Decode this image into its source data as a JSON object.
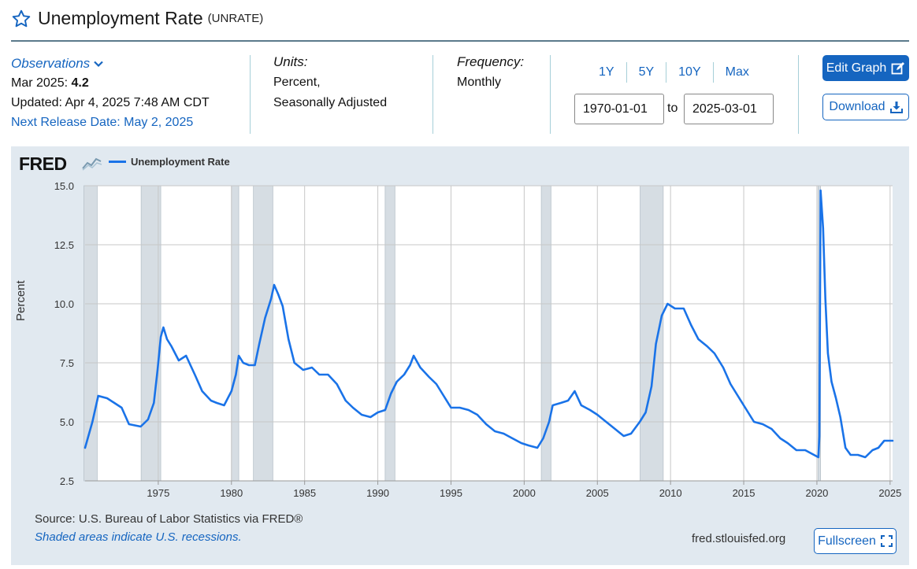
{
  "header": {
    "title": "Unemployment Rate",
    "series_id": "(UNRATE)"
  },
  "observations": {
    "link_label": "Observations",
    "period_label": "Mar 2025:",
    "value": "4.2",
    "updated": "Updated: Apr 4, 2025 7:48 AM CDT",
    "next_release": "Next Release Date: May 2, 2025"
  },
  "units": {
    "label": "Units:",
    "line1": "Percent,",
    "line2": "Seasonally Adjusted"
  },
  "frequency": {
    "label": "Frequency:",
    "value": "Monthly"
  },
  "range_buttons": [
    "1Y",
    "5Y",
    "10Y",
    "Max"
  ],
  "date_range": {
    "start": "1970-01-01",
    "to_label": "to",
    "end": "2025-03-01"
  },
  "buttons": {
    "edit": "Edit Graph",
    "download": "Download",
    "fullscreen": "Fullscreen"
  },
  "footer": {
    "source": "Source: U.S. Bureau of Labor Statistics via FRED®",
    "note": "Shaded areas indicate U.S. recessions.",
    "site": "fred.stlouisfed.org"
  },
  "logo_text": "FRED",
  "colors": {
    "accent": "#1565c0",
    "line": "#1a73e8",
    "panel": "#e1e9f0",
    "recession": "#d6dde3"
  },
  "chart_data": {
    "type": "line",
    "legend": "Unemployment Rate",
    "ylabel": "Percent",
    "xlim": [
      1970.0,
      2025.17
    ],
    "ylim": [
      2.5,
      15.0
    ],
    "yticks": [
      "2.5",
      "5.0",
      "7.5",
      "10.0",
      "12.5",
      "15.0"
    ],
    "ytick_values": [
      2.5,
      5.0,
      7.5,
      10.0,
      12.5,
      15.0
    ],
    "xticks": [
      "1975",
      "1980",
      "1985",
      "1990",
      "1995",
      "2000",
      "2005",
      "2010",
      "2015",
      "2020",
      "2025"
    ],
    "xtick_values": [
      1975,
      1980,
      1985,
      1990,
      1995,
      2000,
      2005,
      2010,
      2015,
      2020,
      2025
    ],
    "recessions": [
      [
        1969.92,
        1970.83
      ],
      [
        1973.83,
        1975.17
      ],
      [
        1980.0,
        1980.5
      ],
      [
        1981.5,
        1982.83
      ],
      [
        1990.5,
        1991.17
      ],
      [
        2001.17,
        2001.83
      ],
      [
        2007.92,
        2009.5
      ],
      [
        2020.08,
        2020.25
      ]
    ],
    "series": [
      {
        "name": "Unemployment Rate",
        "points": [
          [
            1970.0,
            3.9
          ],
          [
            1970.5,
            5.0
          ],
          [
            1970.9,
            6.1
          ],
          [
            1971.5,
            6.0
          ],
          [
            1972.0,
            5.8
          ],
          [
            1972.5,
            5.6
          ],
          [
            1973.0,
            4.9
          ],
          [
            1973.8,
            4.8
          ],
          [
            1974.3,
            5.1
          ],
          [
            1974.7,
            5.8
          ],
          [
            1974.95,
            7.2
          ],
          [
            1975.17,
            8.6
          ],
          [
            1975.35,
            9.0
          ],
          [
            1975.6,
            8.5
          ],
          [
            1975.9,
            8.2
          ],
          [
            1976.4,
            7.6
          ],
          [
            1976.9,
            7.8
          ],
          [
            1977.5,
            7.0
          ],
          [
            1978.0,
            6.3
          ],
          [
            1978.6,
            5.9
          ],
          [
            1979.0,
            5.8
          ],
          [
            1979.5,
            5.7
          ],
          [
            1980.0,
            6.3
          ],
          [
            1980.3,
            7.0
          ],
          [
            1980.5,
            7.8
          ],
          [
            1980.8,
            7.5
          ],
          [
            1981.2,
            7.4
          ],
          [
            1981.6,
            7.4
          ],
          [
            1981.9,
            8.3
          ],
          [
            1982.3,
            9.4
          ],
          [
            1982.7,
            10.2
          ],
          [
            1982.92,
            10.8
          ],
          [
            1983.2,
            10.4
          ],
          [
            1983.5,
            9.9
          ],
          [
            1983.9,
            8.5
          ],
          [
            1984.3,
            7.5
          ],
          [
            1984.9,
            7.2
          ],
          [
            1985.5,
            7.3
          ],
          [
            1986.0,
            7.0
          ],
          [
            1986.6,
            7.0
          ],
          [
            1987.2,
            6.6
          ],
          [
            1987.8,
            5.9
          ],
          [
            1988.3,
            5.6
          ],
          [
            1988.9,
            5.3
          ],
          [
            1989.5,
            5.2
          ],
          [
            1990.0,
            5.4
          ],
          [
            1990.5,
            5.5
          ],
          [
            1990.9,
            6.2
          ],
          [
            1991.3,
            6.7
          ],
          [
            1991.8,
            7.0
          ],
          [
            1992.2,
            7.4
          ],
          [
            1992.45,
            7.8
          ],
          [
            1992.9,
            7.3
          ],
          [
            1993.5,
            6.9
          ],
          [
            1994.0,
            6.6
          ],
          [
            1994.5,
            6.1
          ],
          [
            1995.0,
            5.6
          ],
          [
            1995.6,
            5.6
          ],
          [
            1996.2,
            5.5
          ],
          [
            1996.8,
            5.3
          ],
          [
            1997.4,
            4.9
          ],
          [
            1998.0,
            4.6
          ],
          [
            1998.6,
            4.5
          ],
          [
            1999.2,
            4.3
          ],
          [
            1999.8,
            4.1
          ],
          [
            2000.3,
            4.0
          ],
          [
            2000.9,
            3.9
          ],
          [
            2001.3,
            4.3
          ],
          [
            2001.7,
            5.0
          ],
          [
            2001.95,
            5.7
          ],
          [
            2002.5,
            5.8
          ],
          [
            2003.0,
            5.9
          ],
          [
            2003.45,
            6.3
          ],
          [
            2003.9,
            5.7
          ],
          [
            2004.5,
            5.5
          ],
          [
            2005.0,
            5.3
          ],
          [
            2005.6,
            5.0
          ],
          [
            2006.2,
            4.7
          ],
          [
            2006.8,
            4.4
          ],
          [
            2007.3,
            4.5
          ],
          [
            2007.9,
            5.0
          ],
          [
            2008.3,
            5.4
          ],
          [
            2008.7,
            6.5
          ],
          [
            2009.0,
            8.3
          ],
          [
            2009.4,
            9.5
          ],
          [
            2009.8,
            10.0
          ],
          [
            2010.3,
            9.8
          ],
          [
            2010.9,
            9.8
          ],
          [
            2011.4,
            9.1
          ],
          [
            2011.9,
            8.5
          ],
          [
            2012.5,
            8.2
          ],
          [
            2013.0,
            7.9
          ],
          [
            2013.6,
            7.3
          ],
          [
            2014.1,
            6.6
          ],
          [
            2014.6,
            6.1
          ],
          [
            2015.1,
            5.6
          ],
          [
            2015.7,
            5.0
          ],
          [
            2016.3,
            4.9
          ],
          [
            2016.9,
            4.7
          ],
          [
            2017.5,
            4.3
          ],
          [
            2018.0,
            4.1
          ],
          [
            2018.6,
            3.8
          ],
          [
            2019.2,
            3.8
          ],
          [
            2019.8,
            3.6
          ],
          [
            2020.1,
            3.5
          ],
          [
            2020.17,
            4.4
          ],
          [
            2020.25,
            14.8
          ],
          [
            2020.42,
            13.2
          ],
          [
            2020.58,
            10.2
          ],
          [
            2020.75,
            7.9
          ],
          [
            2021.0,
            6.7
          ],
          [
            2021.3,
            6.0
          ],
          [
            2021.6,
            5.2
          ],
          [
            2021.95,
            3.9
          ],
          [
            2022.3,
            3.6
          ],
          [
            2022.8,
            3.6
          ],
          [
            2023.3,
            3.5
          ],
          [
            2023.8,
            3.8
          ],
          [
            2024.2,
            3.9
          ],
          [
            2024.6,
            4.2
          ],
          [
            2024.9,
            4.2
          ],
          [
            2025.17,
            4.2
          ]
        ]
      }
    ]
  }
}
